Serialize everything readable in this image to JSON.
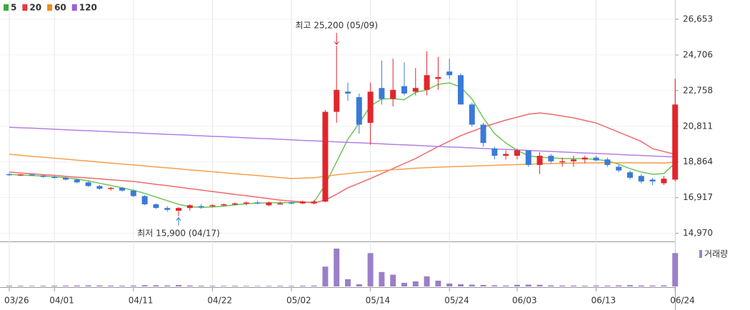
{
  "chart_data": {
    "type": "candlestick",
    "categories": [
      "03/26",
      null,
      null,
      null,
      "04/01",
      null,
      null,
      null,
      null,
      null,
      null,
      "04/11",
      null,
      null,
      null,
      null,
      null,
      null,
      "04/22",
      null,
      null,
      null,
      null,
      null,
      null,
      "05/02",
      null,
      null,
      null,
      null,
      null,
      null,
      "05/14",
      null,
      null,
      null,
      null,
      null,
      null,
      "05/24",
      null,
      null,
      null,
      null,
      null,
      "06/03",
      null,
      null,
      null,
      null,
      null,
      null,
      "06/13",
      null,
      null,
      null,
      null,
      null,
      null,
      "06/24"
    ],
    "up_color": "#e1262b",
    "down_color": "#3a7ad8",
    "open": [
      18200,
      18150,
      18180,
      18120,
      18050,
      18000,
      17900,
      17750,
      17550,
      17400,
      17450,
      17300,
      17000,
      16550,
      16350,
      16200,
      16350,
      16450,
      16450,
      16500,
      16550,
      16600,
      16650,
      16500,
      16600,
      16650,
      16600,
      16600,
      16700,
      21600,
      22700,
      22400,
      21000,
      22900,
      22300,
      23000,
      22700,
      22800,
      23400,
      23800,
      23600,
      22000,
      20900,
      19600,
      19200,
      19200,
      19500,
      18700,
      19200,
      18850,
      18900,
      19000,
      19100,
      19000,
      18600,
      18300,
      18100,
      17900,
      17700,
      17900
    ],
    "high": [
      18250,
      18200,
      18200,
      18150,
      18100,
      18050,
      17950,
      17800,
      17600,
      17500,
      17500,
      17350,
      17050,
      16600,
      16450,
      16400,
      16550,
      16550,
      16550,
      16600,
      16650,
      16700,
      16750,
      16700,
      16700,
      16700,
      16750,
      16800,
      21700,
      25200,
      23200,
      22600,
      23200,
      24400,
      24500,
      24300,
      24000,
      24900,
      24600,
      24500,
      23700,
      22100,
      21000,
      19700,
      19500,
      19600,
      19500,
      19400,
      19300,
      19100,
      19200,
      19200,
      19200,
      19100,
      18700,
      18400,
      18200,
      18000,
      18100,
      23400
    ],
    "low": [
      18100,
      18100,
      18100,
      18000,
      17950,
      17850,
      17700,
      17500,
      17350,
      17300,
      17250,
      16950,
      16500,
      16300,
      16150,
      15900,
      16200,
      16300,
      16400,
      16450,
      16500,
      16500,
      16550,
      16450,
      16550,
      16550,
      16550,
      16550,
      16650,
      21000,
      22200,
      20400,
      19800,
      22000,
      21900,
      22500,
      22500,
      22500,
      22800,
      23400,
      22000,
      20800,
      19700,
      19000,
      19000,
      19000,
      18600,
      18200,
      18800,
      18600,
      18600,
      18800,
      18900,
      18600,
      18300,
      17900,
      17700,
      17600,
      17600,
      17800
    ],
    "close": [
      18150,
      18180,
      18120,
      18050,
      18000,
      17900,
      17750,
      17550,
      17400,
      17450,
      17300,
      17000,
      16550,
      16350,
      16250,
      16350,
      16500,
      16400,
      16500,
      16550,
      16600,
      16650,
      16600,
      16650,
      16600,
      16600,
      16700,
      16700,
      21600,
      22800,
      22600,
      20900,
      22700,
      22300,
      22800,
      22600,
      22900,
      23600,
      23500,
      23600,
      22000,
      20900,
      19900,
      19200,
      19300,
      19500,
      18700,
      19200,
      18900,
      18900,
      19000,
      19100,
      18950,
      18700,
      18400,
      18000,
      17800,
      17800,
      17950,
      22000
    ],
    "moving_averages": [
      {
        "name": "5",
        "color": "#6cc656",
        "values": [
          18180,
          18150,
          18120,
          18090,
          18050,
          18000,
          17930,
          17830,
          17700,
          17580,
          17450,
          17320,
          17150,
          16950,
          16750,
          16550,
          16420,
          16380,
          16400,
          16450,
          16520,
          16580,
          16620,
          16630,
          16640,
          16650,
          16660,
          16670,
          17630,
          18870,
          20100,
          20980,
          21920,
          22300,
          22320,
          22260,
          22660,
          22800,
          23100,
          23180,
          22950,
          22300,
          21270,
          20410,
          19900,
          19500,
          19200,
          19120,
          19090,
          19050,
          19050,
          19050,
          19000,
          18930,
          18740,
          18500,
          18310,
          18190,
          18230,
          18800
        ]
      },
      {
        "name": "20",
        "color": "#f06a6a",
        "values": [
          18310,
          18260,
          18220,
          18170,
          18130,
          18080,
          18030,
          17990,
          17940,
          17890,
          17850,
          17800,
          17720,
          17640,
          17570,
          17490,
          17410,
          17330,
          17250,
          17170,
          17090,
          17020,
          16940,
          16860,
          16780,
          16730,
          16680,
          16630,
          16780,
          17100,
          17450,
          17700,
          17960,
          18230,
          18500,
          18780,
          19050,
          19380,
          19700,
          20000,
          20300,
          20530,
          20760,
          20960,
          21150,
          21310,
          21470,
          21540,
          21470,
          21370,
          21270,
          21130,
          20990,
          20740,
          20490,
          20240,
          19980,
          19590,
          19430,
          19280
        ]
      },
      {
        "name": "60",
        "color": "#f5a04a",
        "values": [
          19280,
          19230,
          19170,
          19120,
          19070,
          19020,
          18960,
          18910,
          18860,
          18800,
          18750,
          18700,
          18650,
          18590,
          18540,
          18490,
          18430,
          18380,
          18330,
          18280,
          18220,
          18170,
          18120,
          18070,
          18010,
          17960,
          17980,
          18000,
          18080,
          18160,
          18230,
          18290,
          18340,
          18390,
          18440,
          18480,
          18520,
          18550,
          18580,
          18600,
          18620,
          18640,
          18660,
          18680,
          18700,
          18720,
          18740,
          18760,
          18770,
          18790,
          18800,
          18810,
          18810,
          18820,
          18820,
          18820,
          18810,
          18810,
          18800,
          18860
        ]
      },
      {
        "name": "120",
        "color": "#b77ee6",
        "values": [
          20760,
          20730,
          20710,
          20680,
          20650,
          20620,
          20590,
          20570,
          20540,
          20510,
          20480,
          20460,
          20430,
          20400,
          20370,
          20350,
          20320,
          20290,
          20260,
          20240,
          20210,
          20180,
          20150,
          20130,
          20100,
          20070,
          20040,
          20020,
          19990,
          19960,
          19930,
          19910,
          19880,
          19850,
          19820,
          19800,
          19770,
          19740,
          19710,
          19680,
          19660,
          19630,
          19600,
          19570,
          19550,
          19520,
          19490,
          19460,
          19440,
          19410,
          19380,
          19350,
          19330,
          19300,
          19270,
          19240,
          19220,
          19190,
          19160,
          19130
        ]
      }
    ],
    "legend_colors": [
      "#3cab3c",
      "#e23c3c",
      "#f28a1e",
      "#9b5fd8"
    ],
    "volume": {
      "name": "거래량",
      "color": "#9b7fc8",
      "values": [
        40000,
        35000,
        30000,
        35000,
        40000,
        45000,
        50000,
        60000,
        55000,
        45000,
        40000,
        50000,
        70000,
        65000,
        55000,
        80000,
        50000,
        40000,
        35000,
        30000,
        35000,
        30000,
        25000,
        30000,
        35000,
        30000,
        40000,
        45000,
        1100000,
        2100000,
        400000,
        120000,
        1850000,
        800000,
        650000,
        200000,
        280000,
        560000,
        320000,
        160000,
        120000,
        100000,
        80000,
        60000,
        50000,
        90000,
        100000,
        90000,
        60000,
        50000,
        45000,
        40000,
        50000,
        45000,
        60000,
        70000,
        55000,
        50000,
        60000,
        1850000
      ]
    },
    "ylim": [
      14524,
      27706
    ],
    "yticks": [
      {
        "value": 26653,
        "label": "26,653"
      },
      {
        "value": 24706,
        "label": "24,706"
      },
      {
        "value": 22758,
        "label": "22,758"
      },
      {
        "value": 20811,
        "label": "20,811"
      },
      {
        "value": 18864,
        "label": "18,864"
      },
      {
        "value": 16917,
        "label": "16,917"
      },
      {
        "value": 14970,
        "label": "14,970"
      }
    ],
    "annotations": [
      {
        "text": "최고 25,200 (05/09)",
        "value": 25200,
        "color": "#e1262b"
      },
      {
        "text": "최저 15,900 (04/17)",
        "value": 15900,
        "color": "#2f7fd6"
      }
    ]
  }
}
